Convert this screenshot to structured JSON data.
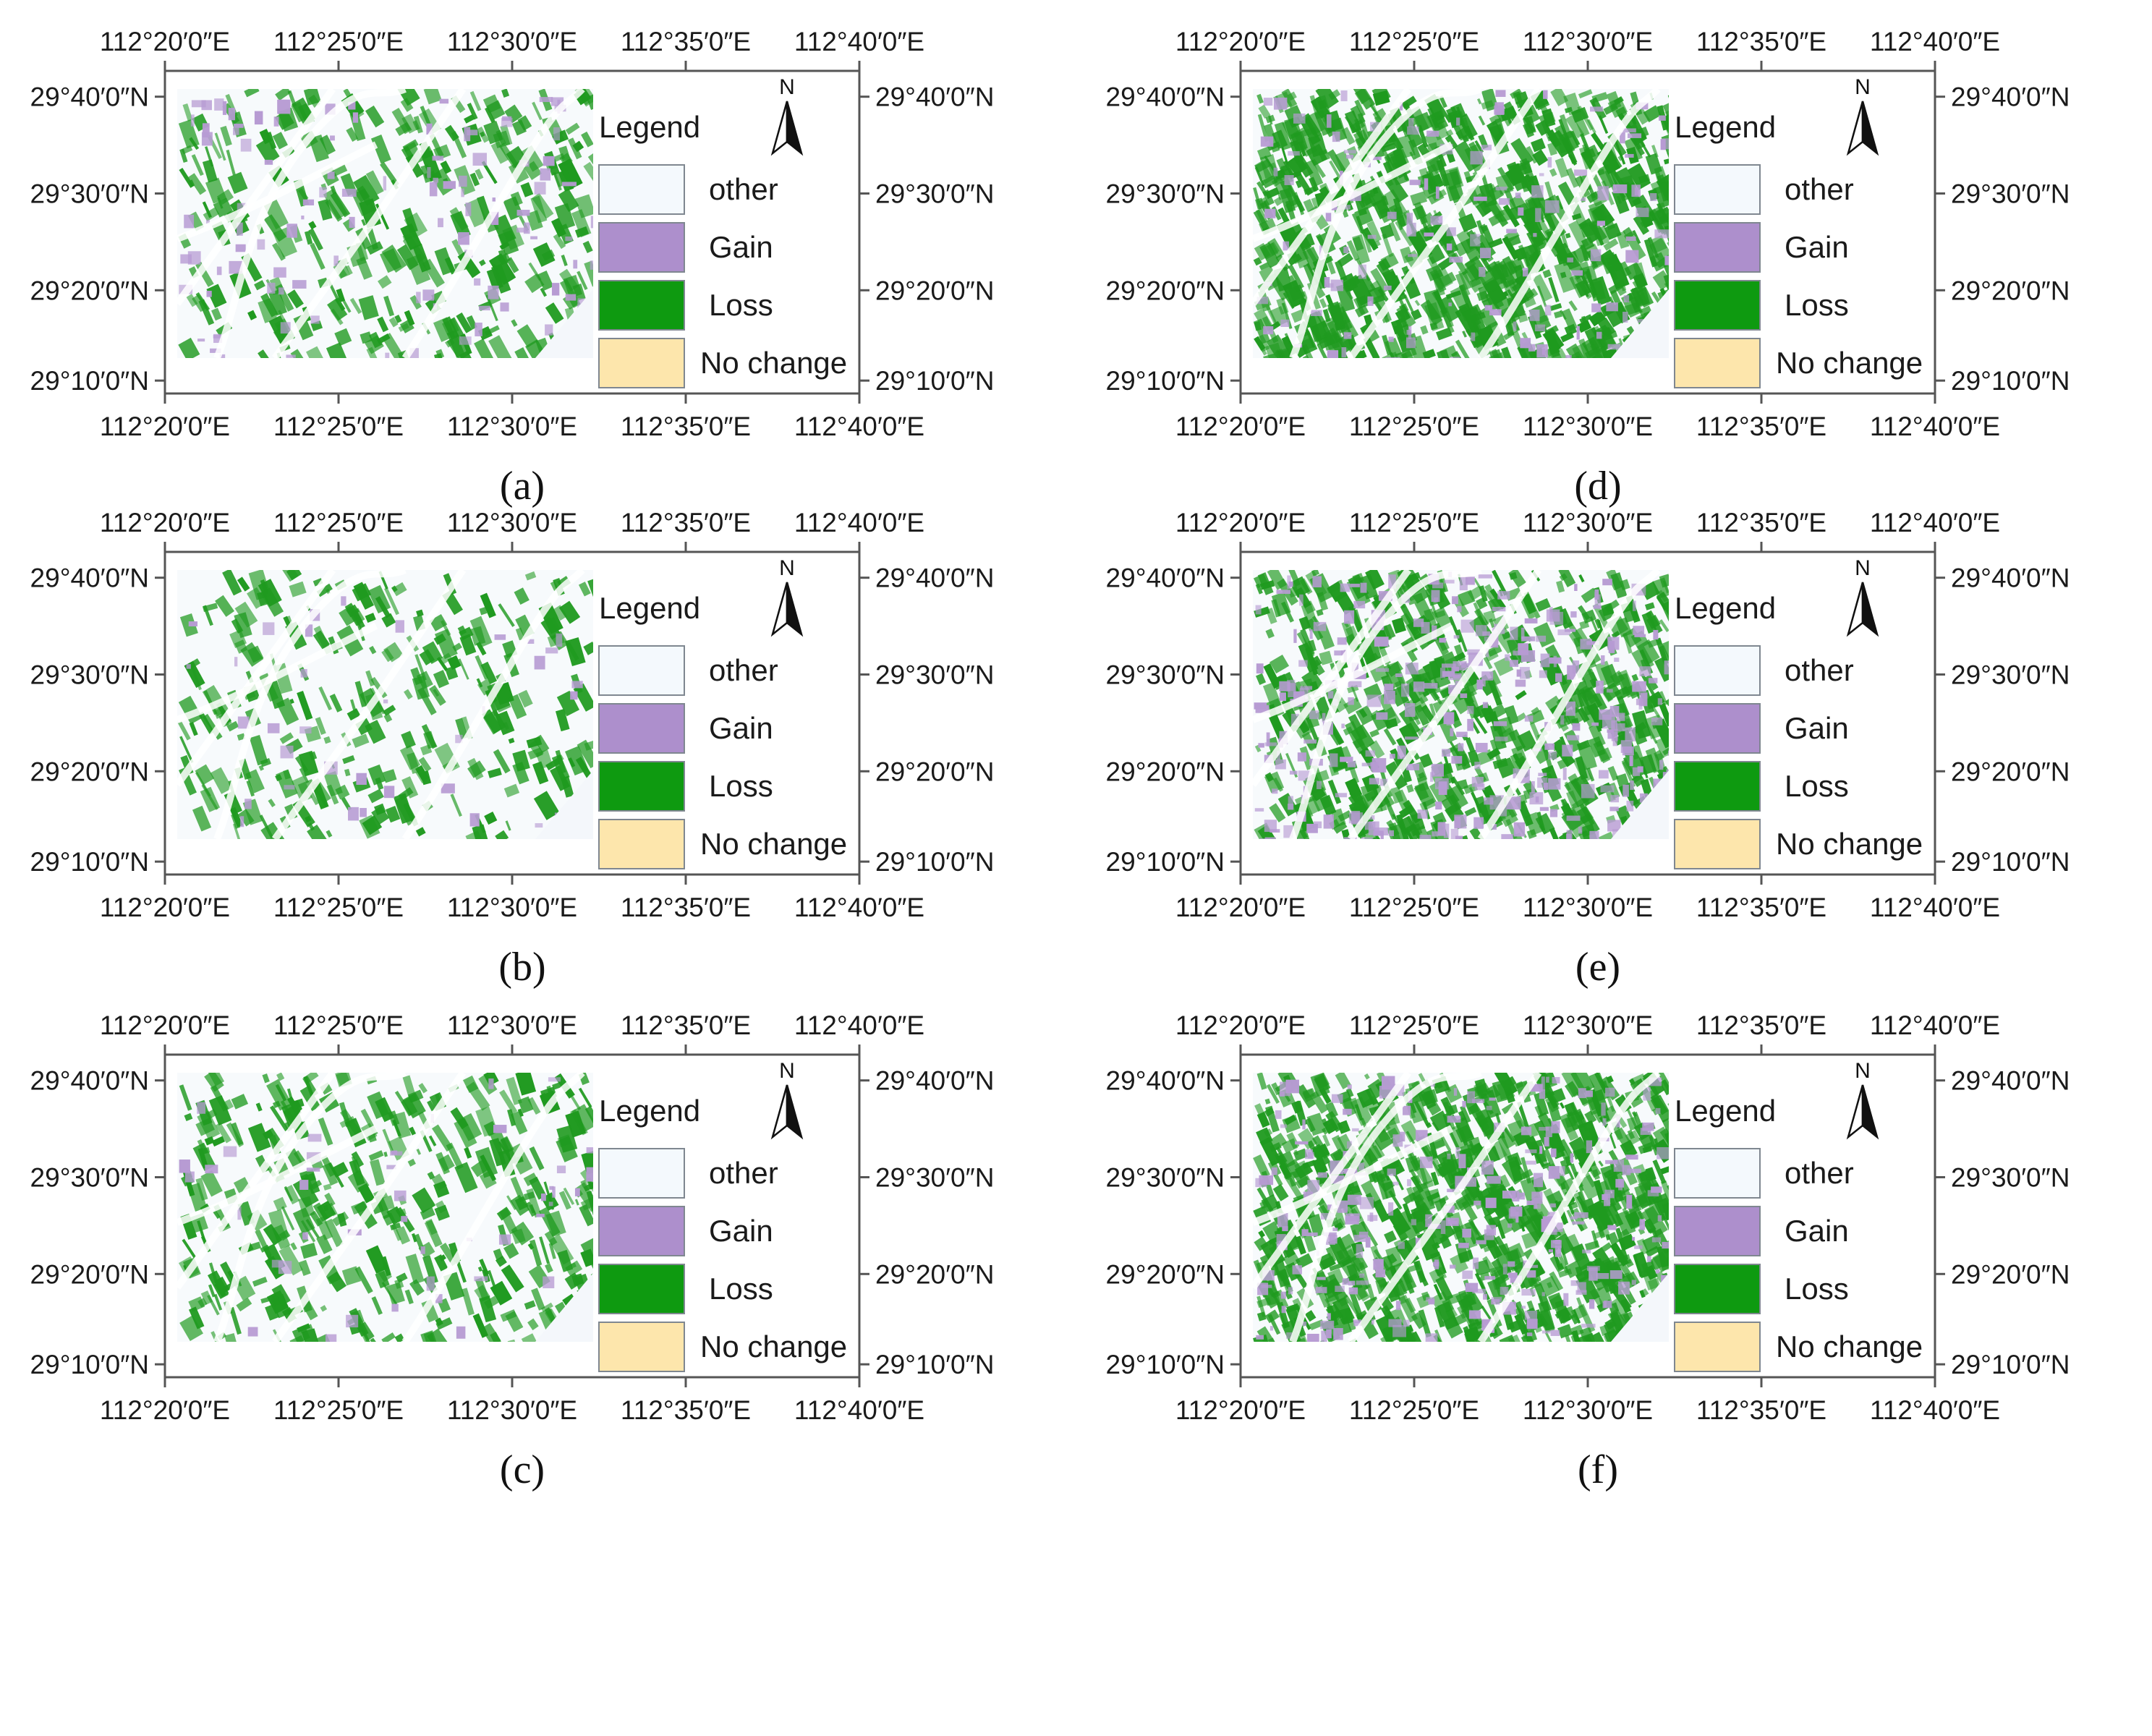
{
  "axes": {
    "lon_labels": [
      "112°20′0″E",
      "112°25′0″E",
      "112°30′0″E",
      "112°35′0″E",
      "112°40′0″E"
    ],
    "lat_labels": [
      "29°40′0″N",
      "29°30′0″N",
      "29°20′0″N",
      "29°10′0″N"
    ]
  },
  "legend": {
    "title": "Legend",
    "items": [
      {
        "label": "other",
        "color": "#f4f9fd"
      },
      {
        "label": "Gain",
        "color": "#ad8fcc"
      },
      {
        "label": "Loss",
        "color": "#0e9a10"
      },
      {
        "label": "No change",
        "color": "#fde6ac"
      }
    ]
  },
  "north_label": "N",
  "colors": {
    "frame": "#555555",
    "loss": "#1f9a1f",
    "gain": "#b79bd3",
    "road": "#ffffff"
  },
  "panels": [
    {
      "id": "a",
      "caption": "(a)",
      "loss_density": 0.25,
      "gain_density": 0.12
    },
    {
      "id": "b",
      "caption": "(b)",
      "loss_density": 0.22,
      "gain_density": 0.04
    },
    {
      "id": "c",
      "caption": "(c)",
      "loss_density": 0.3,
      "gain_density": 0.05
    },
    {
      "id": "d",
      "caption": "(d)",
      "loss_density": 0.7,
      "gain_density": 0.15
    },
    {
      "id": "e",
      "caption": "(e)",
      "loss_density": 0.5,
      "gain_density": 0.35
    },
    {
      "id": "f",
      "caption": "(f)",
      "loss_density": 0.7,
      "gain_density": 0.3
    }
  ]
}
